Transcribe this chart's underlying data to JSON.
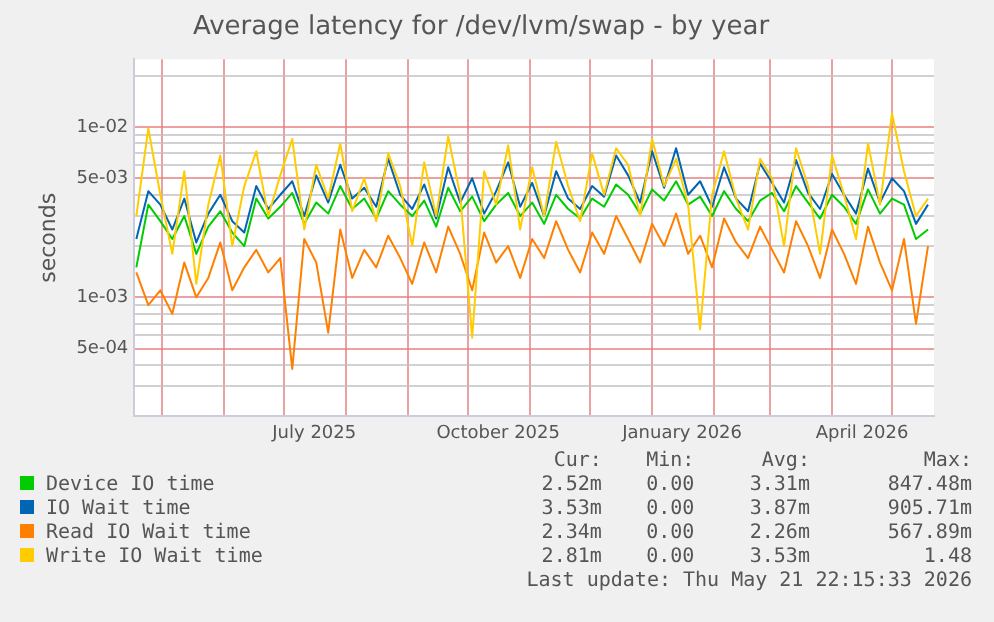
{
  "chart_data": {
    "type": "line",
    "title": "Average latency for /dev/lvm/swap - by year",
    "ylabel": "seconds",
    "log": "y",
    "grid": true,
    "legend": "bottom",
    "marker": "none",
    "line_style": "solid",
    "x": [
      "2025-04-18",
      "2025-04-24",
      "2025-04-30",
      "2025-05-06",
      "2025-05-12",
      "2025-05-18",
      "2025-05-24",
      "2025-05-30",
      "2025-06-05",
      "2025-06-11",
      "2025-06-17",
      "2025-06-23",
      "2025-06-29",
      "2025-07-05",
      "2025-07-11",
      "2025-07-17",
      "2025-07-23",
      "2025-07-29",
      "2025-08-04",
      "2025-08-10",
      "2025-08-16",
      "2025-08-22",
      "2025-08-28",
      "2025-09-03",
      "2025-09-09",
      "2025-09-15",
      "2025-09-21",
      "2025-09-27",
      "2025-10-03",
      "2025-10-09",
      "2025-10-15",
      "2025-10-21",
      "2025-10-27",
      "2025-11-02",
      "2025-11-08",
      "2025-11-14",
      "2025-11-20",
      "2025-11-26",
      "2025-12-02",
      "2025-12-08",
      "2025-12-14",
      "2025-12-20",
      "2025-12-26",
      "2026-01-01",
      "2026-01-07",
      "2026-01-13",
      "2026-01-19",
      "2026-01-25",
      "2026-01-31",
      "2026-02-06",
      "2026-02-12",
      "2026-02-18",
      "2026-02-24",
      "2026-03-02",
      "2026-03-08",
      "2026-03-14",
      "2026-03-20",
      "2026-03-26",
      "2026-04-01",
      "2026-04-07",
      "2026-04-13",
      "2026-04-19",
      "2026-04-25",
      "2026-05-01",
      "2026-05-07",
      "2026-05-13",
      "2026-05-19"
    ],
    "xlim": [
      "2025-04-17",
      "2026-05-22"
    ],
    "xticks": [
      {
        "value": "2025-05-01",
        "label": null
      },
      {
        "value": "2025-06-01",
        "label": null
      },
      {
        "value": "2025-07-01",
        "label": null
      },
      {
        "value": "2025-07-16",
        "label": "July 2025"
      },
      {
        "value": "2025-08-01",
        "label": null
      },
      {
        "value": "2025-09-01",
        "label": null
      },
      {
        "value": "2025-10-01",
        "label": null
      },
      {
        "value": "2025-10-16",
        "label": "October 2025"
      },
      {
        "value": "2025-11-01",
        "label": null
      },
      {
        "value": "2025-12-01",
        "label": null
      },
      {
        "value": "2026-01-01",
        "label": null
      },
      {
        "value": "2026-01-16",
        "label": "January 2026"
      },
      {
        "value": "2026-02-01",
        "label": null
      },
      {
        "value": "2026-03-01",
        "label": null
      },
      {
        "value": "2026-04-01",
        "label": null
      },
      {
        "value": "2026-04-16",
        "label": "April 2026"
      },
      {
        "value": "2026-05-01",
        "label": null
      }
    ],
    "ylim": [
      0.0002,
      0.025
    ],
    "yticks": [
      {
        "value": 0.0002,
        "label": null
      },
      {
        "value": 0.0003,
        "label": null
      },
      {
        "value": 0.0004,
        "label": null
      },
      {
        "value": 0.0005,
        "label": "5e-04"
      },
      {
        "value": 0.0006,
        "label": null
      },
      {
        "value": 0.0007,
        "label": null
      },
      {
        "value": 0.0008,
        "label": null
      },
      {
        "value": 0.0009,
        "label": null
      },
      {
        "value": 0.001,
        "label": "1e-03"
      },
      {
        "value": 0.002,
        "label": null
      },
      {
        "value": 0.003,
        "label": null
      },
      {
        "value": 0.004,
        "label": null
      },
      {
        "value": 0.005,
        "label": "5e-03"
      },
      {
        "value": 0.006,
        "label": null
      },
      {
        "value": 0.007,
        "label": null
      },
      {
        "value": 0.008,
        "label": null
      },
      {
        "value": 0.009,
        "label": null
      },
      {
        "value": 0.01,
        "label": "1e-02"
      },
      {
        "value": 0.02,
        "label": null
      }
    ],
    "series": [
      {
        "name": "Device IO time",
        "color": "#00cc00",
        "values": [
          0.0015,
          0.0035,
          0.0028,
          0.0022,
          0.003,
          0.0018,
          0.0026,
          0.0032,
          0.0024,
          0.002,
          0.0038,
          0.0029,
          0.0034,
          0.0041,
          0.0027,
          0.0036,
          0.0031,
          0.0045,
          0.0033,
          0.0038,
          0.0029,
          0.0042,
          0.0035,
          0.003,
          0.0037,
          0.0026,
          0.0044,
          0.0032,
          0.0039,
          0.0028,
          0.0035,
          0.0041,
          0.003,
          0.0036,
          0.0027,
          0.004,
          0.0033,
          0.0029,
          0.0038,
          0.0034,
          0.0046,
          0.004,
          0.0031,
          0.0043,
          0.0037,
          0.0048,
          0.0035,
          0.0039,
          0.003,
          0.0042,
          0.0033,
          0.0028,
          0.0037,
          0.0041,
          0.0032,
          0.0045,
          0.0036,
          0.0029,
          0.004,
          0.0034,
          0.0027,
          0.0043,
          0.0031,
          0.0038,
          0.0035,
          0.0022,
          0.0025
        ]
      },
      {
        "name": "IO Wait time",
        "color": "#0066b3",
        "values": [
          0.0022,
          0.0042,
          0.0035,
          0.0025,
          0.0038,
          0.0021,
          0.0031,
          0.004,
          0.0028,
          0.0024,
          0.0045,
          0.0033,
          0.004,
          0.0048,
          0.003,
          0.0052,
          0.0036,
          0.006,
          0.0038,
          0.0044,
          0.0034,
          0.0065,
          0.004,
          0.0033,
          0.0046,
          0.0029,
          0.0058,
          0.0036,
          0.005,
          0.0031,
          0.0042,
          0.0062,
          0.0034,
          0.0047,
          0.003,
          0.0055,
          0.0038,
          0.0033,
          0.0045,
          0.0039,
          0.0068,
          0.0052,
          0.0036,
          0.0072,
          0.0044,
          0.0075,
          0.004,
          0.0048,
          0.0034,
          0.0058,
          0.0038,
          0.0032,
          0.0061,
          0.0047,
          0.0036,
          0.0064,
          0.0041,
          0.0033,
          0.0053,
          0.004,
          0.0031,
          0.0057,
          0.0036,
          0.005,
          0.0042,
          0.0027,
          0.0035
        ]
      },
      {
        "name": "Read IO Wait time",
        "color": "#ff8000",
        "values": [
          0.0014,
          0.0009,
          0.0011,
          0.0008,
          0.0016,
          0.001,
          0.0013,
          0.0021,
          0.0011,
          0.0015,
          0.0019,
          0.0014,
          0.0017,
          0.00038,
          0.0022,
          0.0016,
          0.00062,
          0.0025,
          0.0013,
          0.0019,
          0.0015,
          0.0023,
          0.0017,
          0.0012,
          0.0021,
          0.0014,
          0.0026,
          0.0018,
          0.0011,
          0.0024,
          0.0016,
          0.002,
          0.0013,
          0.0022,
          0.0017,
          0.0028,
          0.0019,
          0.0014,
          0.0024,
          0.0018,
          0.003,
          0.0022,
          0.0016,
          0.0027,
          0.002,
          0.0031,
          0.0018,
          0.0023,
          0.0015,
          0.0029,
          0.0021,
          0.0017,
          0.0026,
          0.0019,
          0.0014,
          0.0028,
          0.002,
          0.0013,
          0.0025,
          0.0018,
          0.0012,
          0.0026,
          0.0016,
          0.0011,
          0.0022,
          0.0007,
          0.002
        ]
      },
      {
        "name": "Write IO Wait time",
        "color": "#ffcc00",
        "values": [
          0.003,
          0.0098,
          0.004,
          0.0018,
          0.0055,
          0.0012,
          0.0035,
          0.0068,
          0.002,
          0.0045,
          0.0072,
          0.003,
          0.0052,
          0.0085,
          0.0025,
          0.006,
          0.0038,
          0.008,
          0.0032,
          0.005,
          0.0028,
          0.007,
          0.0045,
          0.002,
          0.0062,
          0.003,
          0.0088,
          0.004,
          0.00058,
          0.0055,
          0.0035,
          0.0078,
          0.0025,
          0.0058,
          0.003,
          0.0082,
          0.0045,
          0.0028,
          0.007,
          0.004,
          0.0075,
          0.006,
          0.003,
          0.0085,
          0.0045,
          0.0065,
          0.0035,
          0.00065,
          0.004,
          0.0072,
          0.0038,
          0.0025,
          0.0065,
          0.005,
          0.002,
          0.0075,
          0.0045,
          0.0018,
          0.0068,
          0.004,
          0.0022,
          0.008,
          0.0035,
          0.012,
          0.0055,
          0.003,
          0.0038
        ]
      }
    ],
    "annotations": [
      "Cur:",
      "Min:",
      "Avg:",
      "Max:",
      "2.52m",
      "0.00",
      "3.31m",
      "847.48m",
      "3.53m",
      "0.00",
      "3.87m",
      "905.71m",
      "2.34m",
      "0.00",
      "2.26m",
      "567.89m",
      "2.81m",
      "0.00",
      "3.53m",
      "1.48",
      "Last update: Thu May 21 22:15:33 2026"
    ]
  }
}
